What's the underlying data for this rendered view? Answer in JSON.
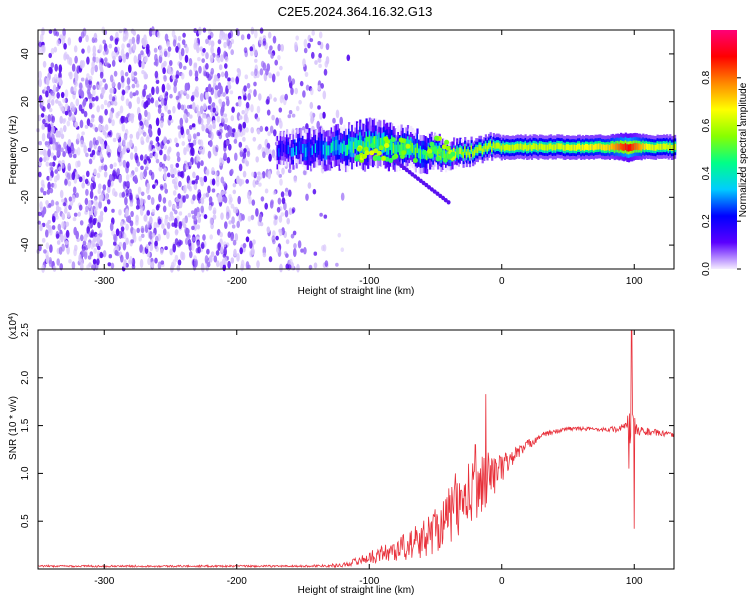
{
  "title": "C2E5.2024.364.16.32.G13",
  "chart_data": [
    {
      "type": "heatmap",
      "xlabel": "Height of straight line (km)",
      "ylabel": "Frequency (Hz)",
      "xlim": [
        -350,
        130
      ],
      "ylim": [
        -50,
        50
      ],
      "x_ticks": [
        -300,
        -200,
        -100,
        0,
        100
      ],
      "y_ticks": [
        -40,
        -20,
        0,
        20,
        40
      ],
      "colorbar": {
        "label": "Normalized spectral amplitude",
        "range": [
          0,
          1
        ],
        "ticks": [
          0.0,
          0.2,
          0.4,
          0.6,
          0.8
        ],
        "colormap": [
          "#f4ecff",
          "#5a00ff",
          "#0000ff",
          "#00ccff",
          "#00ff88",
          "#88ff00",
          "#ffff00",
          "#ff8800",
          "#ff0000",
          "#ff0077"
        ]
      },
      "noise_region_x": [
        -350,
        -115
      ],
      "signal_band": [
        {
          "x": -170,
          "center_hz": 0,
          "width_hz": 7,
          "amp": 0.22
        },
        {
          "x": -140,
          "center_hz": 0,
          "width_hz": 8,
          "amp": 0.3
        },
        {
          "x": -120,
          "center_hz": 1,
          "width_hz": 9,
          "amp": 0.4
        },
        {
          "x": -100,
          "center_hz": 2,
          "width_hz": 10,
          "amp": 0.45
        },
        {
          "x": -80,
          "center_hz": 1,
          "width_hz": 9,
          "amp": 0.45
        },
        {
          "x": -60,
          "center_hz": -1,
          "width_hz": 8,
          "amp": 0.45
        },
        {
          "x": -40,
          "center_hz": -2,
          "width_hz": 6,
          "amp": 0.55
        },
        {
          "x": -25,
          "center_hz": -1,
          "width_hz": 5,
          "amp": 0.6
        },
        {
          "x": -10,
          "center_hz": 1,
          "width_hz": 5,
          "amp": 0.6
        },
        {
          "x": 10,
          "center_hz": 1,
          "width_hz": 5,
          "amp": 0.62
        },
        {
          "x": 40,
          "center_hz": 1,
          "width_hz": 5,
          "amp": 0.62
        },
        {
          "x": 80,
          "center_hz": 1,
          "width_hz": 5,
          "amp": 0.7
        },
        {
          "x": 95,
          "center_hz": 1,
          "width_hz": 6,
          "amp": 0.9
        },
        {
          "x": 110,
          "center_hz": 1,
          "width_hz": 5,
          "amp": 0.65
        },
        {
          "x": 130,
          "center_hz": 1,
          "width_hz": 5,
          "amp": 0.62
        }
      ],
      "grid": false
    },
    {
      "type": "line",
      "xlabel": "Height of straight line (km)",
      "ylabel": "SNR (10 * v/v)",
      "y_multiplier_label": "(x10^4)",
      "xlim": [
        -350,
        130
      ],
      "ylim": [
        0,
        2.5
      ],
      "x_ticks": [
        -300,
        -200,
        -100,
        0,
        100
      ],
      "y_ticks": [
        0.5,
        1.0,
        1.5,
        2.0,
        2.5
      ],
      "series": [
        {
          "color": "#e8303a",
          "envelope": [
            {
              "x": -350,
              "y": 0.03,
              "noise": 0.01
            },
            {
              "x": -150,
              "y": 0.03,
              "noise": 0.01
            },
            {
              "x": -120,
              "y": 0.04,
              "noise": 0.02
            },
            {
              "x": -100,
              "y": 0.12,
              "noise": 0.06
            },
            {
              "x": -80,
              "y": 0.2,
              "noise": 0.12
            },
            {
              "x": -60,
              "y": 0.3,
              "noise": 0.2
            },
            {
              "x": -40,
              "y": 0.55,
              "noise": 0.3
            },
            {
              "x": -25,
              "y": 0.75,
              "noise": 0.35
            },
            {
              "x": -12,
              "y": 0.95,
              "noise": 0.3
            },
            {
              "x": 0,
              "y": 1.05,
              "noise": 0.15
            },
            {
              "x": 10,
              "y": 1.2,
              "noise": 0.08
            },
            {
              "x": 30,
              "y": 1.4,
              "noise": 0.03
            },
            {
              "x": 50,
              "y": 1.47,
              "noise": 0.02
            },
            {
              "x": 80,
              "y": 1.46,
              "noise": 0.02
            },
            {
              "x": 92,
              "y": 1.47,
              "noise": 0.05
            },
            {
              "x": 97,
              "y": 1.5,
              "noise": 0.2
            },
            {
              "x": 103,
              "y": 1.45,
              "noise": 0.05
            },
            {
              "x": 130,
              "y": 1.4,
              "noise": 0.02
            }
          ],
          "spikes": [
            {
              "x": -12,
              "y": 1.83
            },
            {
              "x": -25,
              "y": 1.1
            },
            {
              "x": -35,
              "y": 1.0
            },
            {
              "x": -20,
              "y": 1.3
            },
            {
              "x": 98,
              "y": 2.5
            },
            {
              "x": 100,
              "y": 0.42
            },
            {
              "x": 96,
              "y": 1.05
            }
          ]
        }
      ],
      "grid": false
    }
  ]
}
